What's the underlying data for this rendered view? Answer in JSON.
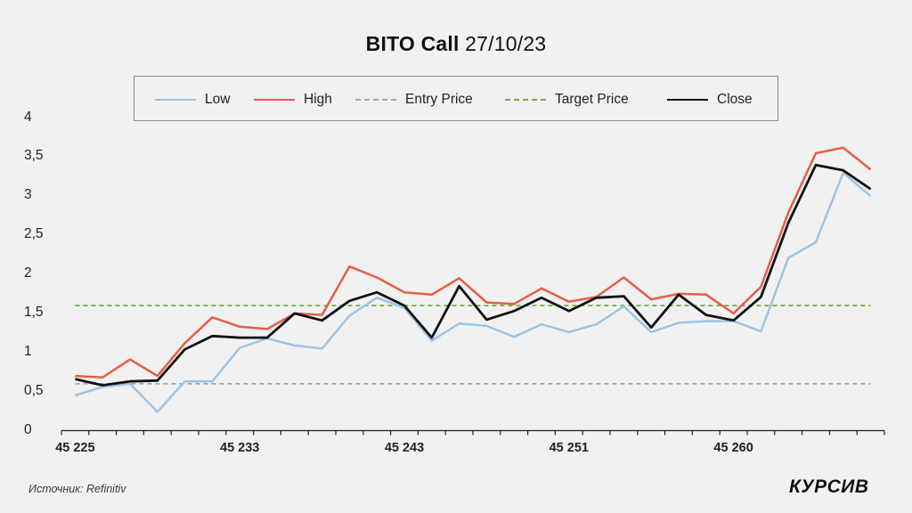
{
  "title": {
    "bold": "BITO Call",
    "regular": " 27/10/23"
  },
  "legend": [
    {
      "key": "low",
      "label": "Low",
      "color": "#9cc3e5",
      "style": "solid"
    },
    {
      "key": "high",
      "label": "High",
      "color": "#e45e45",
      "style": "solid"
    },
    {
      "key": "entry",
      "label": "Entry Price",
      "color": "#a6a6a6",
      "style": "dashed"
    },
    {
      "key": "target",
      "label": "Target Price",
      "color": "#70ad47",
      "style": "dashed"
    },
    {
      "key": "close",
      "label": "Close",
      "color": "#111111",
      "style": "solid"
    }
  ],
  "footer": {
    "source": "Источник: Refinitiv",
    "logo": "КУРСИВ"
  },
  "chart_data": {
    "type": "line",
    "title": "BITO Call 27/10/23",
    "xlabel": "",
    "ylabel": "",
    "ylim": [
      0,
      4
    ],
    "yticks": [
      "0",
      "0,5",
      "1",
      "1,5",
      "2",
      "2,5",
      "3",
      "3,5",
      "4"
    ],
    "ytick_values": [
      0,
      0.5,
      1,
      1.5,
      2,
      2.5,
      3,
      3.5,
      4
    ],
    "n_points": 30,
    "x_tick_labels": [
      {
        "index": 0,
        "label": "45 225"
      },
      {
        "index": 6,
        "label": "45 233"
      },
      {
        "index": 12,
        "label": "45 243"
      },
      {
        "index": 18,
        "label": "45 251"
      },
      {
        "index": 24,
        "label": "45 260"
      }
    ],
    "grid": false,
    "legend_position": "top",
    "series": [
      {
        "name": "Low",
        "color": "#9cc3e5",
        "dash": false,
        "width": 2.5,
        "values": [
          0.45,
          0.56,
          0.6,
          0.24,
          0.63,
          0.63,
          1.06,
          1.18,
          1.09,
          1.05,
          1.47,
          1.7,
          1.57,
          1.15,
          1.37,
          1.34,
          1.2,
          1.36,
          1.26,
          1.36,
          1.59,
          1.26,
          1.38,
          1.4,
          1.4,
          1.27,
          2.21,
          2.41,
          3.3,
          3.0
        ]
      },
      {
        "name": "High",
        "color": "#e45e45",
        "dash": false,
        "width": 2.5,
        "values": [
          0.7,
          0.68,
          0.91,
          0.7,
          1.12,
          1.45,
          1.33,
          1.3,
          1.5,
          1.48,
          2.1,
          1.96,
          1.77,
          1.74,
          1.95,
          1.64,
          1.62,
          1.82,
          1.65,
          1.71,
          1.96,
          1.68,
          1.75,
          1.74,
          1.5,
          1.84,
          2.79,
          3.55,
          3.62,
          3.34
        ]
      },
      {
        "name": "Entry Price",
        "color": "#a6a6a6",
        "dash": true,
        "width": 1.8,
        "values": [
          0.6,
          0.6,
          0.6,
          0.6,
          0.6,
          0.6,
          0.6,
          0.6,
          0.6,
          0.6,
          0.6,
          0.6,
          0.6,
          0.6,
          0.6,
          0.6,
          0.6,
          0.6,
          0.6,
          0.6,
          0.6,
          0.6,
          0.6,
          0.6,
          0.6,
          0.6,
          0.6,
          0.6,
          0.6,
          0.6
        ]
      },
      {
        "name": "Target Price",
        "color": "#70ad47",
        "dash": true,
        "width": 1.8,
        "values": [
          1.6,
          1.6,
          1.6,
          1.6,
          1.6,
          1.6,
          1.6,
          1.6,
          1.6,
          1.6,
          1.6,
          1.6,
          1.6,
          1.6,
          1.6,
          1.6,
          1.6,
          1.6,
          1.6,
          1.6,
          1.6,
          1.6,
          1.6,
          1.6,
          1.6,
          1.6,
          1.6,
          1.6,
          1.6,
          1.6
        ]
      },
      {
        "name": "Close",
        "color": "#111111",
        "dash": false,
        "width": 2.8,
        "values": [
          0.66,
          0.58,
          0.63,
          0.64,
          1.04,
          1.21,
          1.19,
          1.19,
          1.5,
          1.41,
          1.66,
          1.77,
          1.6,
          1.19,
          1.85,
          1.42,
          1.53,
          1.7,
          1.53,
          1.7,
          1.72,
          1.32,
          1.74,
          1.48,
          1.41,
          1.71,
          2.66,
          3.4,
          3.33,
          3.09
        ]
      }
    ]
  }
}
